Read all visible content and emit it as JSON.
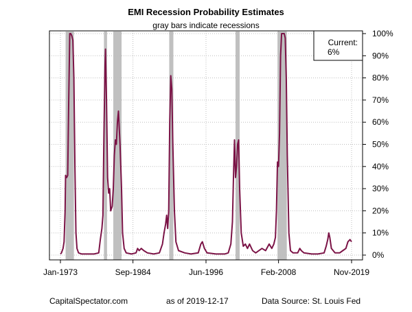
{
  "chart_data": {
    "type": "line",
    "title": "EMI Recession Probability Estimates",
    "subtitle": "gray bars indicate recessions",
    "x_range": [
      "1973-01",
      "2019-11"
    ],
    "ylim": [
      0,
      100
    ],
    "y_unit": "%",
    "grid": true,
    "x_ticks": [
      {
        "label": "Jan-1973",
        "date": "1973-01"
      },
      {
        "label": "Sep-1984",
        "date": "1984-09"
      },
      {
        "label": "Jun-1996",
        "date": "1996-06"
      },
      {
        "label": "Feb-2008",
        "date": "2008-02"
      },
      {
        "label": "Nov-2019",
        "date": "2019-11"
      }
    ],
    "y_ticks": [
      {
        "label": "0%",
        "value": 0
      },
      {
        "label": "10%",
        "value": 10
      },
      {
        "label": "20%",
        "value": 20
      },
      {
        "label": "30%",
        "value": 30
      },
      {
        "label": "40%",
        "value": 40
      },
      {
        "label": "50%",
        "value": 50
      },
      {
        "label": "60%",
        "value": 60
      },
      {
        "label": "70%",
        "value": 70
      },
      {
        "label": "80%",
        "value": 80
      },
      {
        "label": "90%",
        "value": 90
      },
      {
        "label": "100%",
        "value": 100
      }
    ],
    "recessions": [
      {
        "start": "1973-11",
        "end": "1975-03"
      },
      {
        "start": "1980-01",
        "end": "1980-07"
      },
      {
        "start": "1981-07",
        "end": "1982-11"
      },
      {
        "start": "1990-07",
        "end": "1991-03"
      },
      {
        "start": "2001-03",
        "end": "2001-11"
      },
      {
        "start": "2007-12",
        "end": "2009-06"
      }
    ],
    "series": [
      {
        "color": "#7b1346",
        "points": [
          [
            "1973-01",
            0.5
          ],
          [
            "1973-03",
            1
          ],
          [
            "1973-06",
            3
          ],
          [
            "1973-08",
            6
          ],
          [
            "1973-10",
            20
          ],
          [
            "1973-11",
            36
          ],
          [
            "1974-01",
            35
          ],
          [
            "1974-03",
            36
          ],
          [
            "1974-05",
            70
          ],
          [
            "1974-07",
            100
          ],
          [
            "1974-09",
            100
          ],
          [
            "1974-11",
            99
          ],
          [
            "1975-01",
            97
          ],
          [
            "1975-03",
            80
          ],
          [
            "1975-05",
            40
          ],
          [
            "1975-07",
            10
          ],
          [
            "1975-09",
            3
          ],
          [
            "1975-12",
            1
          ],
          [
            "1976-06",
            0.5
          ],
          [
            "1977-06",
            0.5
          ],
          [
            "1978-06",
            0.5
          ],
          [
            "1979-03",
            1
          ],
          [
            "1979-06",
            7
          ],
          [
            "1979-09",
            12
          ],
          [
            "1979-11",
            18
          ],
          [
            "1980-01",
            55
          ],
          [
            "1980-03",
            85
          ],
          [
            "1980-04",
            93
          ],
          [
            "1980-06",
            70
          ],
          [
            "1980-08",
            35
          ],
          [
            "1980-10",
            28
          ],
          [
            "1980-12",
            30
          ],
          [
            "1981-02",
            20
          ],
          [
            "1981-05",
            22
          ],
          [
            "1981-07",
            30
          ],
          [
            "1981-09",
            45
          ],
          [
            "1981-11",
            52
          ],
          [
            "1982-01",
            50
          ],
          [
            "1982-03",
            60
          ],
          [
            "1982-05",
            65
          ],
          [
            "1982-08",
            50
          ],
          [
            "1982-11",
            30
          ],
          [
            "1983-01",
            10
          ],
          [
            "1983-04",
            3
          ],
          [
            "1983-08",
            1
          ],
          [
            "1984-06",
            0.5
          ],
          [
            "1985-03",
            1
          ],
          [
            "1985-06",
            3
          ],
          [
            "1985-09",
            2
          ],
          [
            "1986-01",
            3
          ],
          [
            "1986-06",
            2
          ],
          [
            "1987-01",
            1
          ],
          [
            "1988-01",
            0.5
          ],
          [
            "1988-12",
            1
          ],
          [
            "1989-06",
            5
          ],
          [
            "1989-09",
            10
          ],
          [
            "1989-12",
            14
          ],
          [
            "1990-02",
            18
          ],
          [
            "1990-04",
            12
          ],
          [
            "1990-06",
            20
          ],
          [
            "1990-08",
            60
          ],
          [
            "1990-10",
            81
          ],
          [
            "1990-12",
            75
          ],
          [
            "1991-02",
            50
          ],
          [
            "1991-05",
            20
          ],
          [
            "1991-08",
            6
          ],
          [
            "1992-01",
            2
          ],
          [
            "1993-01",
            1
          ],
          [
            "1994-01",
            0.5
          ],
          [
            "1995-03",
            1
          ],
          [
            "1995-08",
            5
          ],
          [
            "1995-11",
            6
          ],
          [
            "1996-03",
            3
          ],
          [
            "1996-08",
            1
          ],
          [
            "1998-01",
            0.5
          ],
          [
            "1999-06",
            0.5
          ],
          [
            "2000-01",
            1
          ],
          [
            "2000-06",
            5
          ],
          [
            "2000-09",
            15
          ],
          [
            "2000-11",
            35
          ],
          [
            "2001-01",
            52
          ],
          [
            "2001-03",
            35
          ],
          [
            "2001-05",
            40
          ],
          [
            "2001-07",
            50
          ],
          [
            "2001-09",
            52
          ],
          [
            "2001-11",
            30
          ],
          [
            "2002-02",
            10
          ],
          [
            "2002-06",
            4
          ],
          [
            "2002-10",
            5
          ],
          [
            "2003-02",
            3
          ],
          [
            "2003-06",
            5
          ],
          [
            "2003-12",
            2
          ],
          [
            "2004-06",
            1
          ],
          [
            "2005-06",
            3
          ],
          [
            "2006-01",
            2
          ],
          [
            "2006-08",
            5
          ],
          [
            "2007-01",
            3
          ],
          [
            "2007-05",
            5
          ],
          [
            "2007-08",
            8
          ],
          [
            "2007-10",
            20
          ],
          [
            "2007-12",
            42
          ],
          [
            "2008-02",
            40
          ],
          [
            "2008-04",
            55
          ],
          [
            "2008-06",
            90
          ],
          [
            "2008-08",
            100
          ],
          [
            "2008-10",
            100
          ],
          [
            "2009-01",
            100
          ],
          [
            "2009-03",
            98
          ],
          [
            "2009-05",
            80
          ],
          [
            "2009-07",
            45
          ],
          [
            "2009-10",
            10
          ],
          [
            "2010-01",
            2
          ],
          [
            "2010-06",
            1
          ],
          [
            "2011-03",
            1
          ],
          [
            "2011-07",
            3
          ],
          [
            "2011-10",
            2
          ],
          [
            "2012-03",
            1
          ],
          [
            "2013-06",
            0.5
          ],
          [
            "2014-06",
            0.5
          ],
          [
            "2015-06",
            1
          ],
          [
            "2015-10",
            4
          ],
          [
            "2016-01",
            7
          ],
          [
            "2016-03",
            10
          ],
          [
            "2016-05",
            8
          ],
          [
            "2016-08",
            3
          ],
          [
            "2017-03",
            1
          ],
          [
            "2017-12",
            1
          ],
          [
            "2018-06",
            2
          ],
          [
            "2018-12",
            3
          ],
          [
            "2019-04",
            6
          ],
          [
            "2019-08",
            7
          ],
          [
            "2019-11",
            6
          ]
        ]
      }
    ],
    "legend": {
      "position": "top-right",
      "label": "Current:",
      "value": "6%"
    }
  },
  "footer": {
    "left": "CapitalSpectator.com",
    "center": "as of 2019-12-17",
    "right": "Data Source: St. Louis Fed"
  },
  "colors": {
    "line": "#7b1346",
    "recession": "#c0c0c0",
    "grid": "#bdbdbd"
  }
}
